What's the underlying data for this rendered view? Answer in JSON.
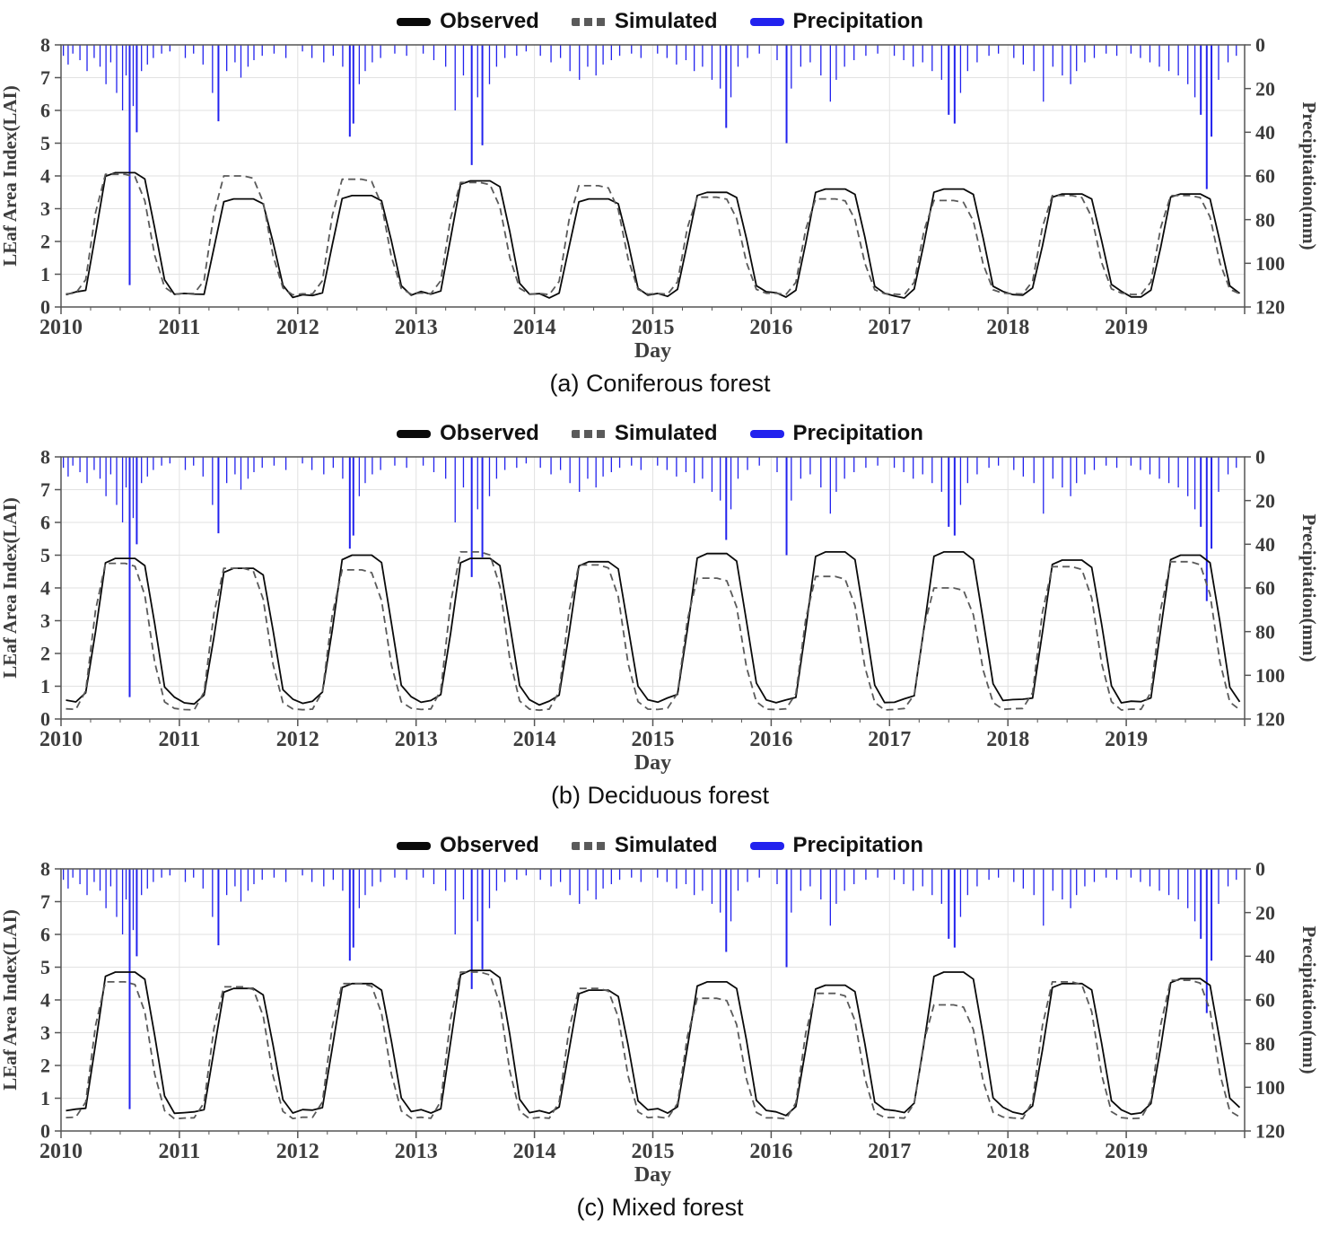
{
  "colors": {
    "observed": "#0a0a0a",
    "simulated": "#5a5a5a",
    "precipitation": "#2222ee",
    "grid": "#e2e2e2",
    "axis": "#555555",
    "tick_text": "#3d3d3d"
  },
  "legend": [
    {
      "label": "Observed",
      "style": "solid"
    },
    {
      "label": "Simulated",
      "style": "dashed"
    },
    {
      "label": "Precipitation",
      "style": "bar"
    }
  ],
  "axes": {
    "xlabel": "Day",
    "ylabel_left": "LEaf Area Index(LAI)",
    "ylabel_right": "Precipitation(mm)",
    "x_tick_labels": [
      "2010",
      "2011",
      "2012",
      "2013",
      "2014",
      "2015",
      "2016",
      "2017",
      "2018",
      "2019"
    ],
    "y_ticks_left": [
      0,
      1,
      2,
      3,
      4,
      5,
      6,
      7,
      8
    ],
    "y_ticks_right": [
      0,
      20,
      40,
      60,
      80,
      100,
      120
    ]
  },
  "precipitation_events": [
    [
      2010.02,
      5
    ],
    [
      2010.06,
      9
    ],
    [
      2010.1,
      4
    ],
    [
      2010.16,
      7
    ],
    [
      2010.22,
      12
    ],
    [
      2010.28,
      6
    ],
    [
      2010.33,
      10
    ],
    [
      2010.38,
      18
    ],
    [
      2010.42,
      8
    ],
    [
      2010.47,
      22
    ],
    [
      2010.52,
      30
    ],
    [
      2010.55,
      14
    ],
    [
      2010.58,
      110
    ],
    [
      2010.61,
      28
    ],
    [
      2010.64,
      40
    ],
    [
      2010.68,
      12
    ],
    [
      2010.73,
      9
    ],
    [
      2010.78,
      6
    ],
    [
      2010.85,
      4
    ],
    [
      2010.92,
      3
    ],
    [
      2011.05,
      6
    ],
    [
      2011.12,
      4
    ],
    [
      2011.2,
      9
    ],
    [
      2011.28,
      22
    ],
    [
      2011.33,
      35
    ],
    [
      2011.4,
      12
    ],
    [
      2011.47,
      8
    ],
    [
      2011.52,
      15
    ],
    [
      2011.58,
      10
    ],
    [
      2011.63,
      7
    ],
    [
      2011.7,
      5
    ],
    [
      2011.8,
      4
    ],
    [
      2011.9,
      6
    ],
    [
      2012.04,
      3
    ],
    [
      2012.12,
      6
    ],
    [
      2012.22,
      8
    ],
    [
      2012.3,
      5
    ],
    [
      2012.38,
      10
    ],
    [
      2012.44,
      42
    ],
    [
      2012.47,
      36
    ],
    [
      2012.52,
      18
    ],
    [
      2012.57,
      12
    ],
    [
      2012.63,
      8
    ],
    [
      2012.7,
      6
    ],
    [
      2012.82,
      4
    ],
    [
      2012.92,
      5
    ],
    [
      2013.06,
      4
    ],
    [
      2013.15,
      7
    ],
    [
      2013.25,
      10
    ],
    [
      2013.33,
      30
    ],
    [
      2013.4,
      14
    ],
    [
      2013.47,
      55
    ],
    [
      2013.52,
      24
    ],
    [
      2013.56,
      46
    ],
    [
      2013.62,
      18
    ],
    [
      2013.68,
      10
    ],
    [
      2013.75,
      6
    ],
    [
      2013.85,
      5
    ],
    [
      2013.93,
      3
    ],
    [
      2014.05,
      5
    ],
    [
      2014.14,
      8
    ],
    [
      2014.22,
      6
    ],
    [
      2014.3,
      12
    ],
    [
      2014.38,
      16
    ],
    [
      2014.45,
      10
    ],
    [
      2014.52,
      14
    ],
    [
      2014.58,
      9
    ],
    [
      2014.65,
      7
    ],
    [
      2014.72,
      5
    ],
    [
      2014.82,
      4
    ],
    [
      2014.9,
      6
    ],
    [
      2015.04,
      4
    ],
    [
      2015.12,
      6
    ],
    [
      2015.2,
      9
    ],
    [
      2015.28,
      7
    ],
    [
      2015.35,
      12
    ],
    [
      2015.42,
      10
    ],
    [
      2015.5,
      16
    ],
    [
      2015.57,
      20
    ],
    [
      2015.62,
      38
    ],
    [
      2015.66,
      24
    ],
    [
      2015.72,
      10
    ],
    [
      2015.8,
      6
    ],
    [
      2015.9,
      4
    ],
    [
      2016.05,
      7
    ],
    [
      2016.13,
      45
    ],
    [
      2016.17,
      20
    ],
    [
      2016.25,
      10
    ],
    [
      2016.33,
      8
    ],
    [
      2016.42,
      14
    ],
    [
      2016.5,
      26
    ],
    [
      2016.55,
      16
    ],
    [
      2016.62,
      10
    ],
    [
      2016.7,
      7
    ],
    [
      2016.8,
      5
    ],
    [
      2016.9,
      4
    ],
    [
      2017.04,
      5
    ],
    [
      2017.12,
      7
    ],
    [
      2017.2,
      10
    ],
    [
      2017.28,
      8
    ],
    [
      2017.36,
      12
    ],
    [
      2017.44,
      16
    ],
    [
      2017.5,
      32
    ],
    [
      2017.55,
      36
    ],
    [
      2017.6,
      22
    ],
    [
      2017.66,
      12
    ],
    [
      2017.74,
      8
    ],
    [
      2017.84,
      5
    ],
    [
      2017.92,
      4
    ],
    [
      2018.05,
      6
    ],
    [
      2018.13,
      9
    ],
    [
      2018.22,
      12
    ],
    [
      2018.3,
      26
    ],
    [
      2018.38,
      10
    ],
    [
      2018.46,
      14
    ],
    [
      2018.53,
      18
    ],
    [
      2018.58,
      12
    ],
    [
      2018.65,
      8
    ],
    [
      2018.73,
      6
    ],
    [
      2018.83,
      4
    ],
    [
      2018.92,
      5
    ],
    [
      2019.04,
      4
    ],
    [
      2019.12,
      6
    ],
    [
      2019.2,
      8
    ],
    [
      2019.28,
      10
    ],
    [
      2019.36,
      12
    ],
    [
      2019.44,
      14
    ],
    [
      2019.52,
      18
    ],
    [
      2019.58,
      24
    ],
    [
      2019.63,
      32
    ],
    [
      2019.68,
      66
    ],
    [
      2019.72,
      42
    ],
    [
      2019.78,
      16
    ],
    [
      2019.86,
      8
    ],
    [
      2019.93,
      5
    ]
  ],
  "chart_data": [
    {
      "type": "line+bar",
      "caption": "(a) Coniferous forest",
      "xlabel": "Day",
      "ylabel_left": "LEaf Area Index(LAI)",
      "ylabel_right": "Precipitation(mm)",
      "x_range": [
        2010,
        2020
      ],
      "ylim_left": [
        0,
        8
      ],
      "ylim_right": [
        0,
        120
      ],
      "x_tick_labels": [
        "2010",
        "2011",
        "2012",
        "2013",
        "2014",
        "2015",
        "2016",
        "2017",
        "2018",
        "2019"
      ],
      "years": [
        2010,
        2011,
        2012,
        2013,
        2014,
        2015,
        2016,
        2017,
        2018,
        2019
      ],
      "series": [
        {
          "name": "Observed",
          "style": "solid",
          "base": 0.3,
          "noise": 0.07,
          "peaks": [
            4.1,
            3.3,
            3.4,
            3.85,
            3.3,
            3.5,
            3.6,
            3.6,
            3.45,
            3.45
          ],
          "shape": [
            0.02,
            0.02,
            0.06,
            0.5,
            0.97,
            1,
            1,
            1,
            0.95,
            0.55,
            0.12,
            0.03
          ]
        },
        {
          "name": "Simulated",
          "style": "dashed",
          "base": 0.4,
          "noise": 0.02,
          "peaks": [
            4.05,
            4.0,
            3.9,
            3.8,
            3.7,
            3.35,
            3.3,
            3.25,
            3.4,
            3.4
          ],
          "shape": [
            0,
            0,
            0.12,
            0.68,
            1,
            1,
            1,
            0.98,
            0.78,
            0.32,
            0.05,
            0
          ]
        }
      ]
    },
    {
      "type": "line+bar",
      "caption": "(b) Deciduous forest",
      "xlabel": "Day",
      "ylabel_left": "LEaf Area Index(LAI)",
      "ylabel_right": "Precipitation(mm)",
      "x_range": [
        2010,
        2020
      ],
      "ylim_left": [
        0,
        8
      ],
      "ylim_right": [
        0,
        120
      ],
      "x_tick_labels": [
        "2010",
        "2011",
        "2012",
        "2013",
        "2014",
        "2015",
        "2016",
        "2017",
        "2018",
        "2019"
      ],
      "years": [
        2010,
        2011,
        2012,
        2013,
        2014,
        2015,
        2016,
        2017,
        2018,
        2019
      ],
      "series": [
        {
          "name": "Observed",
          "style": "solid",
          "base": 0.45,
          "noise": 0.07,
          "peaks": [
            4.9,
            4.6,
            5.0,
            4.9,
            4.8,
            5.05,
            5.1,
            5.1,
            4.85,
            5.0
          ],
          "shape": [
            0.02,
            0.02,
            0.06,
            0.5,
            0.97,
            1,
            1,
            1,
            0.95,
            0.55,
            0.12,
            0.03
          ]
        },
        {
          "name": "Simulated",
          "style": "dashed",
          "base": 0.3,
          "noise": 0.02,
          "peaks": [
            4.75,
            4.6,
            4.55,
            5.1,
            4.7,
            4.3,
            4.35,
            4.0,
            4.65,
            4.8
          ],
          "shape": [
            0,
            0,
            0.12,
            0.68,
            1,
            1,
            1,
            0.98,
            0.78,
            0.32,
            0.05,
            0
          ]
        }
      ]
    },
    {
      "type": "line+bar",
      "caption": "(c) Mixed forest",
      "xlabel": "Day",
      "ylabel_left": "LEaf Area Index(LAI)",
      "ylabel_right": "Precipitation(mm)",
      "x_range": [
        2010,
        2020
      ],
      "ylim_left": [
        0,
        8
      ],
      "ylim_right": [
        0,
        120
      ],
      "x_tick_labels": [
        "2010",
        "2011",
        "2012",
        "2013",
        "2014",
        "2015",
        "2016",
        "2017",
        "2018",
        "2019"
      ],
      "years": [
        2010,
        2011,
        2012,
        2013,
        2014,
        2015,
        2016,
        2017,
        2018,
        2019
      ],
      "series": [
        {
          "name": "Observed",
          "style": "solid",
          "base": 0.5,
          "noise": 0.07,
          "peaks": [
            4.85,
            4.35,
            4.5,
            4.9,
            4.3,
            4.55,
            4.45,
            4.85,
            4.5,
            4.65
          ],
          "shape": [
            0.02,
            0.02,
            0.06,
            0.5,
            0.97,
            1,
            1,
            1,
            0.95,
            0.55,
            0.12,
            0.03
          ]
        },
        {
          "name": "Simulated",
          "style": "dashed",
          "base": 0.4,
          "noise": 0.02,
          "peaks": [
            4.55,
            4.4,
            4.5,
            4.85,
            4.35,
            4.05,
            4.2,
            3.85,
            4.55,
            4.6
          ],
          "shape": [
            0,
            0,
            0.12,
            0.68,
            1,
            1,
            1,
            0.98,
            0.78,
            0.32,
            0.05,
            0
          ]
        }
      ]
    }
  ]
}
